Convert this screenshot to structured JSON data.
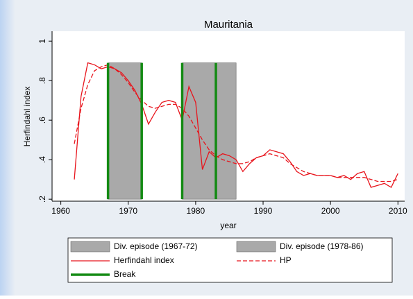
{
  "chart_data": {
    "type": "line",
    "title": "Mauritania",
    "xlabel": "year",
    "ylabel": "Herfindahl index",
    "xlim": [
      1958.7,
      2011
    ],
    "ylim": [
      0.19,
      1.05
    ],
    "xticks": [
      1960,
      1970,
      1980,
      1990,
      2000,
      2010
    ],
    "yticks": [
      {
        "value": 0.2,
        "label": ".2"
      },
      {
        "value": 0.4,
        "label": ".4"
      },
      {
        "value": 0.6,
        "label": ".6"
      },
      {
        "value": 0.8,
        "label": ".8"
      },
      1
    ],
    "x": [
      1962,
      1963,
      1964,
      1965,
      1966,
      1967,
      1968,
      1969,
      1970,
      1971,
      1972,
      1973,
      1974,
      1975,
      1976,
      1977,
      1978,
      1979,
      1980,
      1981,
      1982,
      1983,
      1984,
      1985,
      1986,
      1987,
      1988,
      1989,
      1990,
      1991,
      1992,
      1993,
      1994,
      1995,
      1996,
      1997,
      1998,
      1999,
      2000,
      2001,
      2002,
      2003,
      2004,
      2005,
      2006,
      2007,
      2008,
      2009,
      2010
    ],
    "series": [
      {
        "name": "Herfindahl index",
        "color": "#e8141c",
        "dash": false,
        "values": [
          0.3,
          0.72,
          0.89,
          0.88,
          0.86,
          0.87,
          0.86,
          0.84,
          0.8,
          0.75,
          0.68,
          0.58,
          0.64,
          0.69,
          0.7,
          0.69,
          0.6,
          0.77,
          0.69,
          0.35,
          0.44,
          0.41,
          0.43,
          0.42,
          0.4,
          0.34,
          0.38,
          0.41,
          0.42,
          0.45,
          0.44,
          0.43,
          0.39,
          0.34,
          0.32,
          0.33,
          0.32,
          0.32,
          0.32,
          0.31,
          0.32,
          0.3,
          0.33,
          0.34,
          0.26,
          0.27,
          0.28,
          0.26,
          0.33
        ]
      },
      {
        "name": "HP",
        "color": "#e8141c",
        "dash": true,
        "values": [
          0.48,
          0.66,
          0.78,
          0.85,
          0.87,
          0.88,
          0.86,
          0.83,
          0.79,
          0.74,
          0.7,
          0.67,
          0.66,
          0.67,
          0.68,
          0.68,
          0.66,
          0.62,
          0.56,
          0.5,
          0.45,
          0.42,
          0.4,
          0.39,
          0.38,
          0.38,
          0.39,
          0.41,
          0.42,
          0.43,
          0.42,
          0.41,
          0.38,
          0.36,
          0.34,
          0.33,
          0.32,
          0.32,
          0.32,
          0.31,
          0.31,
          0.31,
          0.31,
          0.31,
          0.3,
          0.29,
          0.29,
          0.29,
          0.3
        ]
      }
    ],
    "episodes": [
      {
        "name": "Div. episode (1967-72)",
        "color": "#a9a9a9",
        "start": 1967,
        "end": 1972,
        "ymin": 0.2,
        "ymax": 0.89
      },
      {
        "name": "Div. episode (1978-86)",
        "color": "#a9a9a9",
        "start": 1978,
        "end": 1986,
        "ymin": 0.2,
        "ymax": 0.89
      }
    ],
    "breaks": {
      "name": "Break",
      "color": "#138a13",
      "values": [
        1967,
        1972,
        1978,
        1983
      ],
      "ymin": 0.2,
      "ymax": 0.89
    }
  }
}
